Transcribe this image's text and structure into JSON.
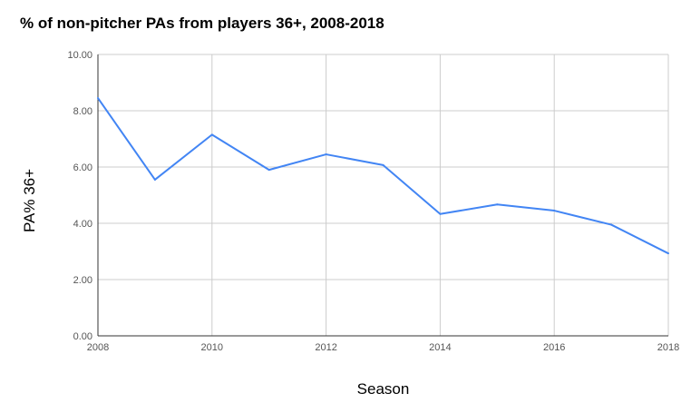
{
  "chart_data": {
    "type": "line",
    "title": "% of non-pitcher PAs from players 36+, 2008-2018",
    "xlabel": "Season",
    "ylabel": "PA% 36+",
    "x": [
      2008,
      2009,
      2010,
      2011,
      2012,
      2013,
      2014,
      2015,
      2016,
      2017,
      2018
    ],
    "series": [
      {
        "values": [
          8.45,
          5.55,
          7.15,
          5.9,
          6.45,
          6.07,
          4.33,
          4.67,
          4.45,
          3.95,
          2.93
        ]
      }
    ],
    "xlim": [
      2008,
      2018
    ],
    "ylim": [
      0,
      10
    ],
    "x_ticks": [
      "2008",
      "2010",
      "2012",
      "2014",
      "2016",
      "2018"
    ],
    "y_ticks": [
      "0.00",
      "2.00",
      "4.00",
      "6.00",
      "8.00",
      "10.00"
    ],
    "grid": true,
    "line_color": "#4285f4",
    "grid_color": "#cccccc",
    "axis_color": "#333333"
  }
}
